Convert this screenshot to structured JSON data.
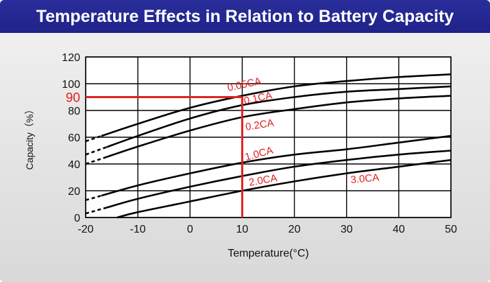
{
  "title": "Temperature Effects in Relation to Battery Capacity",
  "chart_data": {
    "type": "line",
    "xlabel": "Temperature(°C)",
    "ylabel": "Capacity（%）",
    "xlim": [
      -20,
      50
    ],
    "ylim": [
      0,
      120
    ],
    "x_ticks": [
      "-20",
      "-10",
      "0",
      "10",
      "20",
      "30",
      "40",
      "50"
    ],
    "y_ticks": [
      "0",
      "20",
      "40",
      "60",
      "80",
      "100",
      "120"
    ],
    "grid": true,
    "series": [
      {
        "name": "0.05CA",
        "x": [
          -20,
          -10,
          0,
          10,
          20,
          30,
          40,
          50
        ],
        "y": [
          57,
          70,
          82,
          91,
          98,
          102,
          105,
          107
        ],
        "dashed_to": -17
      },
      {
        "name": "0.1CA",
        "x": [
          -20,
          -10,
          0,
          10,
          20,
          30,
          40,
          50
        ],
        "y": [
          47,
          61,
          74,
          84,
          90,
          94,
          96,
          98
        ],
        "dashed_to": -16
      },
      {
        "name": "0.2CA",
        "x": [
          -20,
          -10,
          0,
          10,
          20,
          30,
          40,
          50
        ],
        "y": [
          40,
          53,
          65,
          75,
          81,
          86,
          89,
          91
        ],
        "dashed_to": -16
      },
      {
        "name": "1.0CA",
        "x": [
          -20,
          -10,
          0,
          10,
          20,
          30,
          40,
          50
        ],
        "y": [
          13,
          24,
          33,
          41,
          47,
          51,
          56,
          61
        ],
        "dashed_to": -17
      },
      {
        "name": "2.0CA",
        "x": [
          -20,
          -10,
          0,
          10,
          20,
          30,
          40,
          50
        ],
        "y": [
          3,
          14,
          23,
          31,
          38,
          43,
          47,
          50
        ],
        "dashed_to": -16
      },
      {
        "name": "3.0CA",
        "x": [
          -14,
          -10,
          0,
          10,
          20,
          30,
          40,
          50
        ],
        "y": [
          0,
          4,
          12,
          20,
          27,
          33,
          38,
          43
        ],
        "dashed_to": null
      }
    ],
    "annotation": {
      "label": "90",
      "x": 10,
      "y": 90,
      "color": "#e02020"
    }
  },
  "colors": {
    "line": "#000000",
    "accent": "#e02020",
    "title_bg": "#23268f"
  }
}
